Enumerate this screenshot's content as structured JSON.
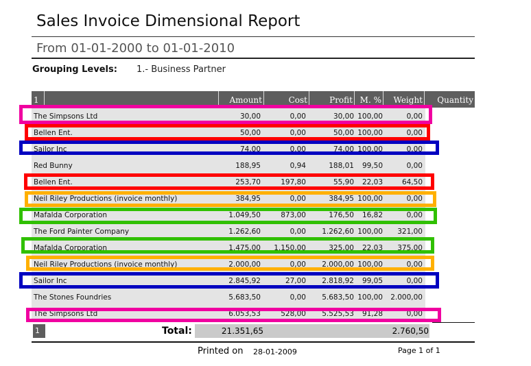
{
  "report": {
    "title": "Sales Invoice Dimensional Report",
    "subtitle": "From 01-01-2000 to 01-01-2010",
    "grouping_label": "Grouping Levels:",
    "grouping_value": "1.- Business Partner"
  },
  "table": {
    "level": "1",
    "columns": [
      "Amount",
      "Cost",
      "Profit",
      "M. %",
      "Weight",
      "Quantity"
    ],
    "rows": [
      [
        "The Simpsons Ltd",
        "30,00",
        "0,00",
        "30,00",
        "100,00",
        "0,00"
      ],
      [
        "Bellen Ent.",
        "50,00",
        "0,00",
        "50,00",
        "100,00",
        "0,00"
      ],
      [
        "Sailor Inc",
        "74,00",
        "0,00",
        "74,00",
        "100,00",
        "0,00"
      ],
      [
        "Red Bunny",
        "188,95",
        "0,94",
        "188,01",
        "99,50",
        "0,00"
      ],
      [
        "Bellen Ent.",
        "253,70",
        "197,80",
        "55,90",
        "22,03",
        "64,50"
      ],
      [
        "Neil Riley Productions (invoice monthly)",
        "384,95",
        "0,00",
        "384,95",
        "100,00",
        "0,00"
      ],
      [
        "Mafalda Corporation",
        "1.049,50",
        "873,00",
        "176,50",
        "16,82",
        "0,00"
      ],
      [
        "The Ford Painter Company",
        "1.262,60",
        "0,00",
        "1.262,60",
        "100,00",
        "321,00"
      ],
      [
        "Mafalda Corporation",
        "1.475,00",
        "1.150,00",
        "325,00",
        "22,03",
        "375,00"
      ],
      [
        "Neil Riley Productions (invoice monthly)",
        "2.000,00",
        "0,00",
        "2.000,00",
        "100,00",
        "0,00"
      ],
      [
        "Sailor Inc",
        "2.845,92",
        "27,00",
        "2.818,92",
        "99,05",
        "0,00"
      ],
      [
        "The Stones Foundries",
        "5.683,50",
        "0,00",
        "5.683,50",
        "100,00",
        "2.000,00"
      ],
      [
        "The Simpsons Ltd",
        "6.053,53",
        "528,00",
        "5.525,53",
        "91,28",
        "0,00"
      ]
    ],
    "total_label": "Total:",
    "total_amount": "21.351,65",
    "total_weight": "2.760,50"
  },
  "footer": {
    "printed_label": "Printed on",
    "printed_date": "28-01-2009",
    "page": "Page 1 of 1"
  },
  "highlight_colors": {
    "magenta": "#f000a0",
    "red": "#ff0000",
    "blue": "#0000c0",
    "orange": "#ffb000",
    "green": "#30c000"
  }
}
